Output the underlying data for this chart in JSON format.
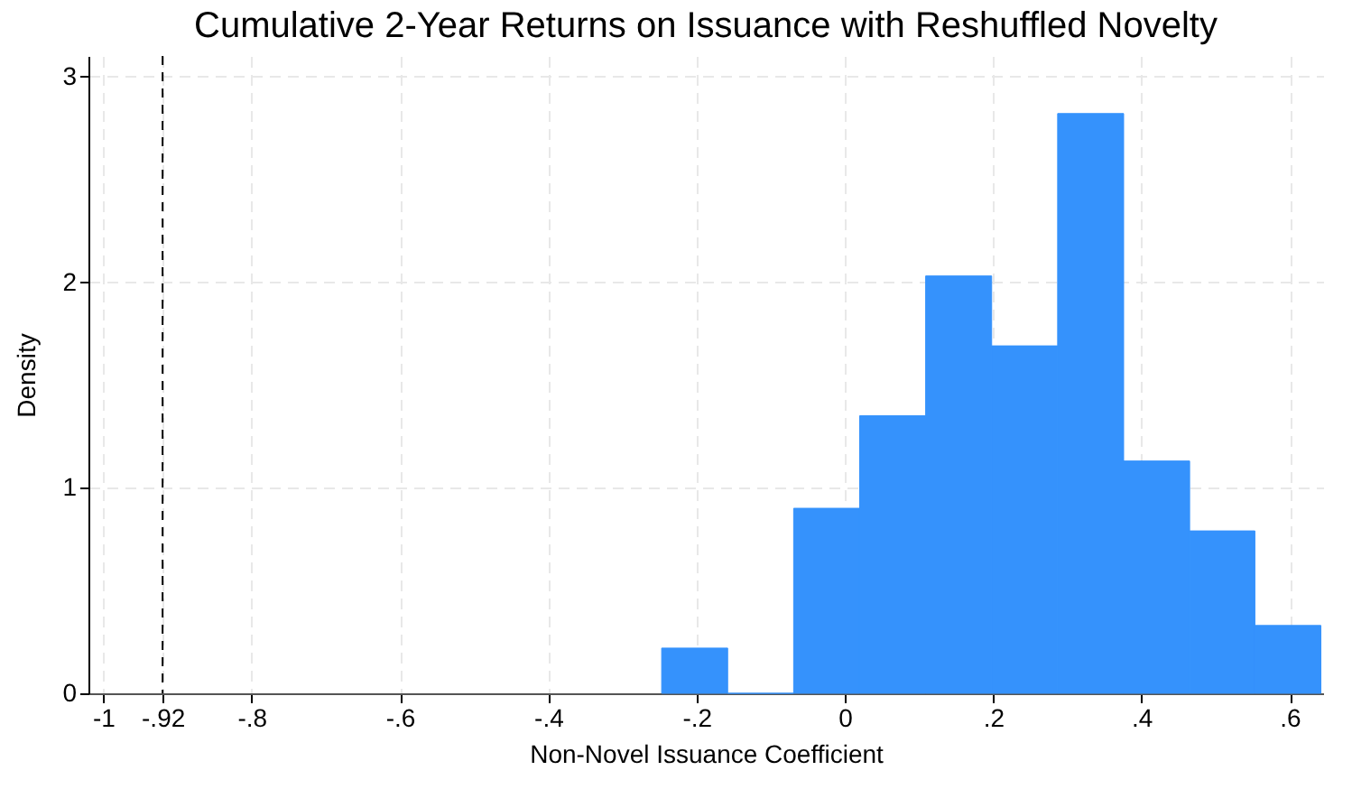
{
  "chart_data": {
    "type": "histogram",
    "title": "Cumulative 2-Year Returns on Issuance with Reshuffled Novelty",
    "xlabel": "Non-Novel Issuance Coefficient",
    "ylabel": "Density",
    "bins": [
      -0.247,
      -0.158,
      -0.069,
      0.02,
      0.109,
      0.198,
      0.287,
      0.376,
      0.465,
      0.553,
      0.642
    ],
    "values": [
      0.22,
      0,
      0.9,
      1.35,
      2.03,
      1.69,
      2.82,
      1.13,
      0.79,
      0.33
    ],
    "color": "#3592fc",
    "xlim": [
      -1.02,
      0.645
    ],
    "ylim": [
      0,
      3.1
    ],
    "xticks": [
      {
        "value": -1,
        "label": "-1"
      },
      {
        "value": -0.92,
        "label": "-.92"
      },
      {
        "value": -0.8,
        "label": "-.8"
      },
      {
        "value": -0.6,
        "label": "-.6"
      },
      {
        "value": -0.4,
        "label": "-.4"
      },
      {
        "value": -0.2,
        "label": "-.2"
      },
      0,
      {
        "value": 0.2,
        "label": ".2"
      },
      {
        "value": 0.4,
        "label": ".4"
      },
      {
        "value": 0.6,
        "label": ".6"
      }
    ],
    "yticks": [
      0,
      1,
      2,
      3
    ],
    "grid": true,
    "ref_lines": [
      {
        "axis": "x",
        "value": -0.92,
        "color": "#000000",
        "line_style": "dashed"
      }
    ]
  }
}
